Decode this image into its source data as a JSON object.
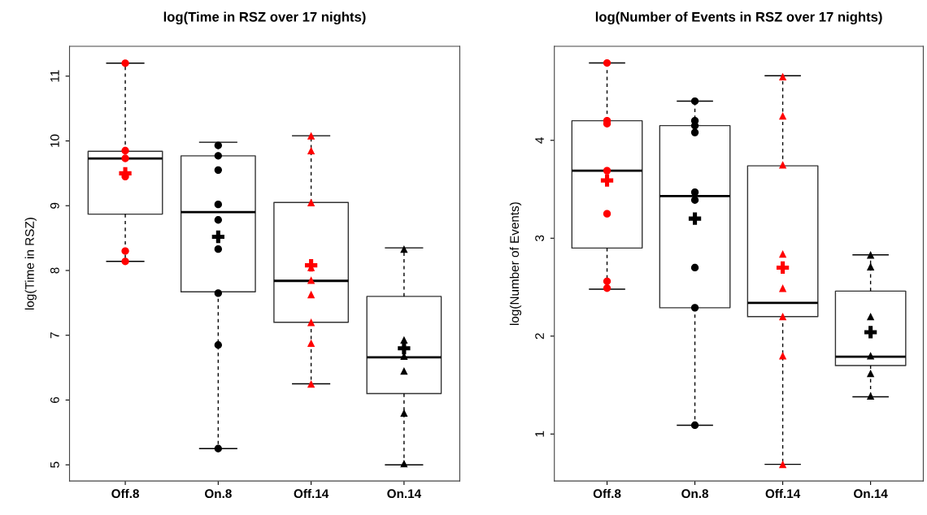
{
  "chart_data": [
    {
      "type": "box",
      "title": "log(Time in RSZ over 17 nights)",
      "ylabel": "log(Time in RSZ)",
      "categories": [
        "Off.8",
        "On.8",
        "Off.14",
        "On.14"
      ],
      "ylim": [
        4.75,
        11.46
      ],
      "yticks": [
        5,
        6,
        7,
        8,
        9,
        10,
        11
      ],
      "grid": false,
      "legend": false,
      "line_style": "dashed",
      "boxes": [
        {
          "low": 8.14,
          "q1": 8.87,
          "median": 9.73,
          "q3": 9.84,
          "high": 11.2,
          "mean": 9.5
        },
        {
          "low": 5.25,
          "q1": 7.67,
          "median": 8.9,
          "q3": 9.77,
          "high": 9.98,
          "mean": 8.52
        },
        {
          "low": 6.25,
          "q1": 7.2,
          "median": 7.84,
          "q3": 9.05,
          "high": 10.08,
          "mean": 8.08
        },
        {
          "low": 5.0,
          "q1": 6.1,
          "median": 6.66,
          "q3": 7.6,
          "high": 8.35,
          "mean": 6.8
        }
      ],
      "series": [
        {
          "type": "scatter",
          "marker": "circle",
          "color": "#ff0000",
          "x": [
            "Off.8",
            "Off.8",
            "Off.8",
            "Off.8",
            "Off.8",
            "Off.8"
          ],
          "values": [
            11.2,
            9.85,
            9.73,
            9.45,
            8.3,
            8.14
          ]
        },
        {
          "type": "scatter",
          "marker": "circle",
          "color": "#000000",
          "x": [
            "On.8",
            "On.8",
            "On.8",
            "On.8",
            "On.8",
            "On.8",
            "On.8",
            "On.8",
            "On.8",
            "On.8"
          ],
          "values": [
            null,
            9.93,
            9.77,
            9.55,
            9.02,
            8.78,
            8.33,
            7.65,
            6.85,
            5.25
          ]
        },
        {
          "type": "scatter",
          "marker": "triangle",
          "color": "#ff0000",
          "x": [
            "Off.14",
            "Off.14",
            "Off.14",
            "Off.14",
            "Off.14",
            "Off.14",
            "Off.14",
            "Off.14",
            "Off.14"
          ],
          "values": [
            10.08,
            9.85,
            9.05,
            8.05,
            7.85,
            7.63,
            7.2,
            6.88,
            6.25
          ]
        },
        {
          "type": "scatter",
          "marker": "triangle",
          "color": "#000000",
          "x": [
            "On.14",
            "On.14",
            "On.14",
            "On.14",
            "On.14",
            "On.14"
          ],
          "values": [
            8.33,
            6.93,
            6.68,
            6.45,
            5.8,
            5.02
          ]
        }
      ]
    },
    {
      "type": "box",
      "title": "log(Number of Events in RSZ over 17 nights)",
      "ylabel": "log(Number of Events)",
      "categories": [
        "Off.8",
        "On.8",
        "Off.14",
        "On.14"
      ],
      "ylim": [
        0.52,
        4.96
      ],
      "yticks": [
        1,
        2,
        3,
        4
      ],
      "grid": false,
      "legend": false,
      "line_style": "dashed",
      "boxes": [
        {
          "low": 2.48,
          "q1": 2.9,
          "median": 3.69,
          "q3": 4.2,
          "high": 4.79,
          "mean": 3.59
        },
        {
          "low": 1.09,
          "q1": 2.29,
          "median": 3.43,
          "q3": 4.15,
          "high": 4.4,
          "mean": 3.2
        },
        {
          "low": 0.69,
          "q1": 2.2,
          "median": 2.34,
          "q3": 3.74,
          "high": 4.66,
          "mean": 2.7
        },
        {
          "low": 1.38,
          "q1": 1.7,
          "median": 1.79,
          "q3": 2.46,
          "high": 2.83,
          "mean": 2.04
        }
      ],
      "series": [
        {
          "type": "scatter",
          "marker": "circle",
          "color": "#ff0000",
          "x": [
            "Off.8",
            "Off.8",
            "Off.8",
            "Off.8",
            "Off.8",
            "Off.8",
            "Off.8"
          ],
          "values": [
            4.79,
            4.2,
            4.17,
            3.69,
            3.25,
            2.56,
            2.49
          ]
        },
        {
          "type": "scatter",
          "marker": "circle",
          "color": "#000000",
          "x": [
            "On.8",
            "On.8",
            "On.8",
            "On.8",
            "On.8",
            "On.8",
            "On.8",
            "On.8",
            "On.8"
          ],
          "values": [
            4.4,
            4.2,
            4.15,
            4.08,
            3.47,
            3.39,
            2.7,
            2.29,
            1.09
          ]
        },
        {
          "type": "scatter",
          "marker": "triangle",
          "color": "#ff0000",
          "x": [
            "Off.14",
            "Off.14",
            "Off.14",
            "Off.14",
            "Off.14",
            "Off.14",
            "Off.14",
            "Off.14"
          ],
          "values": [
            4.65,
            4.25,
            3.75,
            2.84,
            2.49,
            2.2,
            1.8,
            0.69
          ]
        },
        {
          "type": "scatter",
          "marker": "triangle",
          "color": "#000000",
          "x": [
            "On.14",
            "On.14",
            "On.14",
            "On.14",
            "On.14",
            "On.14"
          ],
          "values": [
            2.83,
            2.71,
            2.2,
            1.8,
            1.62,
            1.39
          ]
        }
      ]
    }
  ]
}
